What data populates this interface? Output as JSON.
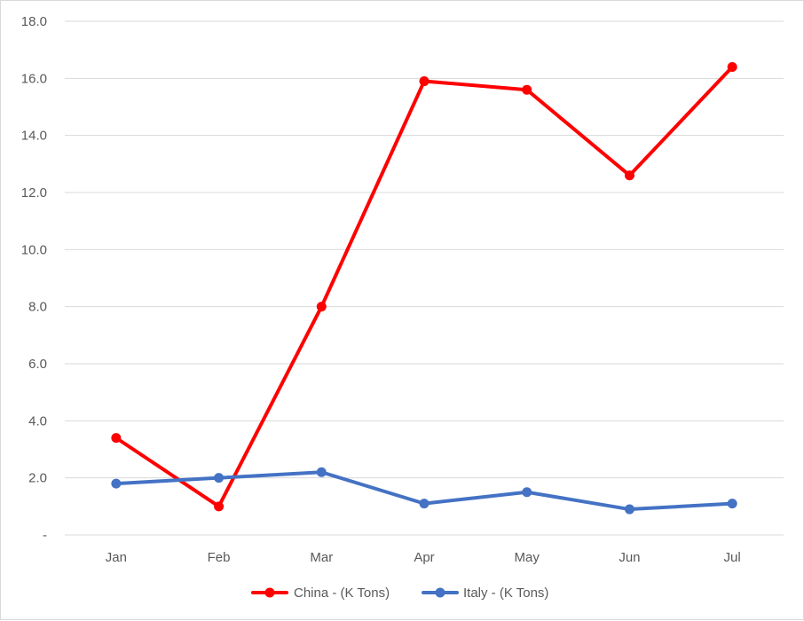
{
  "chart_data": {
    "type": "line",
    "categories": [
      "Jan",
      "Feb",
      "Mar",
      "Apr",
      "May",
      "Jun",
      "Jul"
    ],
    "series": [
      {
        "name": "China - (K Tons)",
        "color": "#ff0000",
        "values": [
          3.4,
          1.0,
          8.0,
          15.9,
          15.6,
          12.6,
          16.4
        ]
      },
      {
        "name": "Italy - (K Tons)",
        "color": "#4472c4",
        "values": [
          1.8,
          2.0,
          2.2,
          1.1,
          1.5,
          0.9,
          1.1
        ]
      }
    ],
    "yticks": [
      "-",
      "2.0",
      "4.0",
      "6.0",
      "8.0",
      "10.0",
      "12.0",
      "14.0",
      "16.0",
      "18.0"
    ],
    "ylim": [
      0,
      18
    ],
    "grid": true,
    "legend_position": "bottom"
  }
}
